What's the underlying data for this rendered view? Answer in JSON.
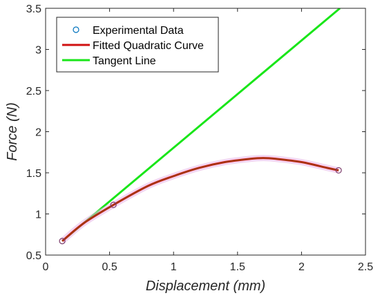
{
  "chart_data": {
    "type": "line",
    "xlabel": "Displacement (mm)",
    "ylabel": "Force (N)",
    "xlim": [
      0,
      2.5
    ],
    "ylim": [
      0.5,
      3.5
    ],
    "xticks": [
      0,
      0.5,
      1,
      1.5,
      2,
      2.5
    ],
    "yticks": [
      0.5,
      1,
      1.5,
      2,
      2.5,
      3,
      3.5
    ],
    "xtick_labels": [
      "0",
      "0.5",
      "1",
      "1.5",
      "2",
      "2.5"
    ],
    "ytick_labels": [
      "0.5",
      "1",
      "1.5",
      "2",
      "2.5",
      "3",
      "3.5"
    ],
    "grid": false,
    "legend_position": "top-left",
    "series": [
      {
        "name": "Experimental Data",
        "kind": "scatter",
        "color": "#0072BD",
        "x": [
          0.13,
          0.53,
          2.29
        ],
        "y": [
          0.67,
          1.11,
          1.53
        ]
      },
      {
        "name": "Fitted Quadratic Curve",
        "kind": "line",
        "color": "#D01010",
        "x": [
          0.13,
          0.3,
          0.53,
          0.8,
          1.0,
          1.2,
          1.4,
          1.6,
          1.7,
          1.8,
          2.0,
          2.2,
          2.29
        ],
        "y": [
          0.67,
          0.89,
          1.11,
          1.34,
          1.46,
          1.56,
          1.63,
          1.67,
          1.68,
          1.67,
          1.63,
          1.56,
          1.53
        ]
      },
      {
        "name": "Tangent Line",
        "kind": "line",
        "color": "#19E619",
        "x": [
          0.13,
          2.3
        ],
        "y": [
          0.67,
          3.5
        ]
      }
    ]
  }
}
